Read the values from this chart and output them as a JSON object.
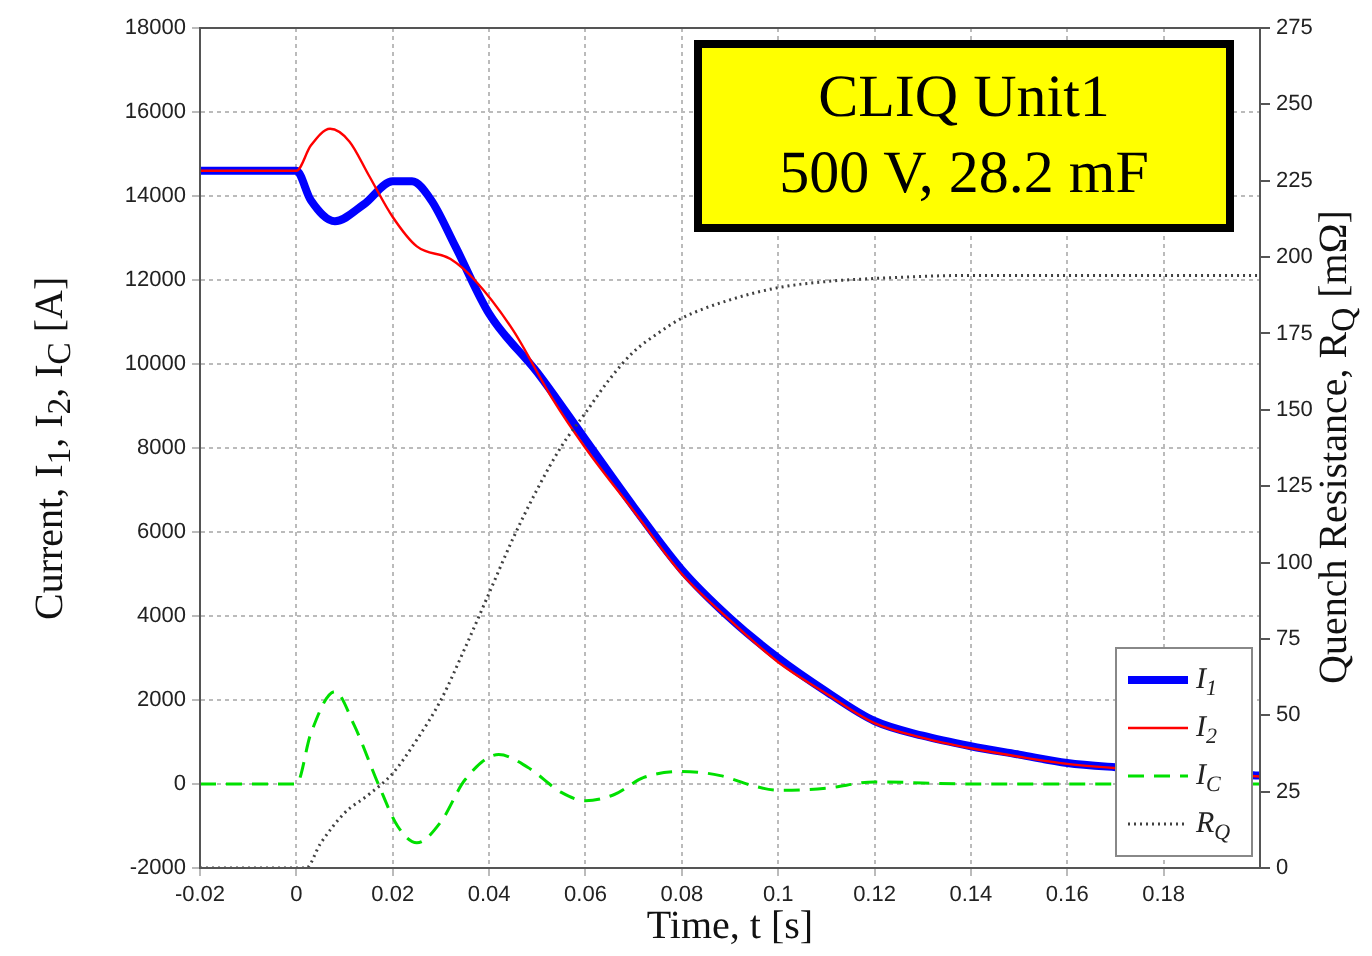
{
  "chart_data": {
    "type": "line",
    "xlabel": "Time, t [s]",
    "ylabel": "Current, I$_{1}$, I$_{2}$, I$_{C}$ [A]",
    "y2label": "Quench Resistance, R$_{Q}$ [mΩ]",
    "annotations": [
      "CLIQ Unit1",
      "500 V, 28.2 mF"
    ],
    "xlim": [
      -0.02,
      0.2
    ],
    "xticks": [
      -0.02,
      0,
      0.02,
      0.04,
      0.06,
      0.08,
      0.1,
      0.12,
      0.14,
      0.16,
      0.18
    ],
    "ylim": [
      -2000,
      18000
    ],
    "yticks": [
      -2000,
      0,
      2000,
      4000,
      6000,
      8000,
      10000,
      12000,
      14000,
      16000,
      18000
    ],
    "y2lim": [
      0,
      275
    ],
    "y2ticks": [
      0,
      25,
      50,
      75,
      100,
      125,
      150,
      175,
      200,
      225,
      250,
      275
    ],
    "grid": true,
    "legend": "bottom right",
    "series": [
      {
        "name": "I$_{1}$",
        "color": "#0000ff",
        "line_style": "solid",
        "x": [
          -0.02,
          0,
          0.003,
          0.008,
          0.014,
          0.02,
          0.024,
          0.028,
          0.033,
          0.04,
          0.05,
          0.06,
          0.07,
          0.08,
          0.09,
          0.1,
          0.11,
          0.12,
          0.13,
          0.14,
          0.15,
          0.16,
          0.17,
          0.2
        ],
        "values": [
          14600,
          14600,
          13900,
          13400,
          13800,
          14350,
          14350,
          13900,
          12800,
          11200,
          9800,
          8200,
          6600,
          5100,
          3950,
          3000,
          2200,
          1500,
          1150,
          900,
          700,
          500,
          400,
          200
        ]
      },
      {
        "name": "I$_{2}$",
        "color": "#ff0000",
        "line_style": "solid",
        "x": [
          -0.02,
          0,
          0.003,
          0.007,
          0.011,
          0.015,
          0.02,
          0.025,
          0.032,
          0.037,
          0.045,
          0.053,
          0.06,
          0.07,
          0.08,
          0.09,
          0.1,
          0.11,
          0.12,
          0.13,
          0.14,
          0.15,
          0.16,
          0.17,
          0.2
        ],
        "values": [
          14600,
          14600,
          15200,
          15600,
          15300,
          14500,
          13500,
          12800,
          12500,
          12000,
          10800,
          9200,
          8000,
          6500,
          5000,
          3900,
          2900,
          2150,
          1450,
          1100,
          850,
          650,
          480,
          380,
          180
        ]
      },
      {
        "name": "I$_{C}$",
        "color": "#00e000",
        "line_style": "dashed",
        "x": [
          -0.02,
          0,
          0.003,
          0.008,
          0.012,
          0.017,
          0.021,
          0.025,
          0.03,
          0.035,
          0.042,
          0.048,
          0.055,
          0.06,
          0.066,
          0.072,
          0.08,
          0.088,
          0.095,
          0.1,
          0.11,
          0.12,
          0.14,
          0.16,
          0.2
        ],
        "values": [
          0,
          0,
          1200,
          2200,
          1400,
          0,
          -1000,
          -1400,
          -900,
          100,
          700,
          400,
          -200,
          -400,
          -250,
          150,
          300,
          200,
          -50,
          -150,
          -100,
          50,
          0,
          0,
          0
        ]
      },
      {
        "name": "R$_{Q}$",
        "color": "#404040",
        "line_style": "dotted",
        "axis": "y2",
        "x": [
          -0.02,
          0,
          0.002,
          0.005,
          0.01,
          0.015,
          0.02,
          0.025,
          0.03,
          0.035,
          0.04,
          0.045,
          0.05,
          0.055,
          0.06,
          0.065,
          0.07,
          0.075,
          0.08,
          0.09,
          0.1,
          0.11,
          0.12,
          0.14,
          0.16,
          0.2
        ],
        "values": [
          0,
          0,
          0,
          8,
          18,
          24,
          31,
          42,
          55,
          72,
          90,
          108,
          124,
          138,
          149,
          160,
          169,
          175,
          180,
          186,
          190,
          192,
          193,
          194,
          194,
          194
        ]
      }
    ]
  }
}
